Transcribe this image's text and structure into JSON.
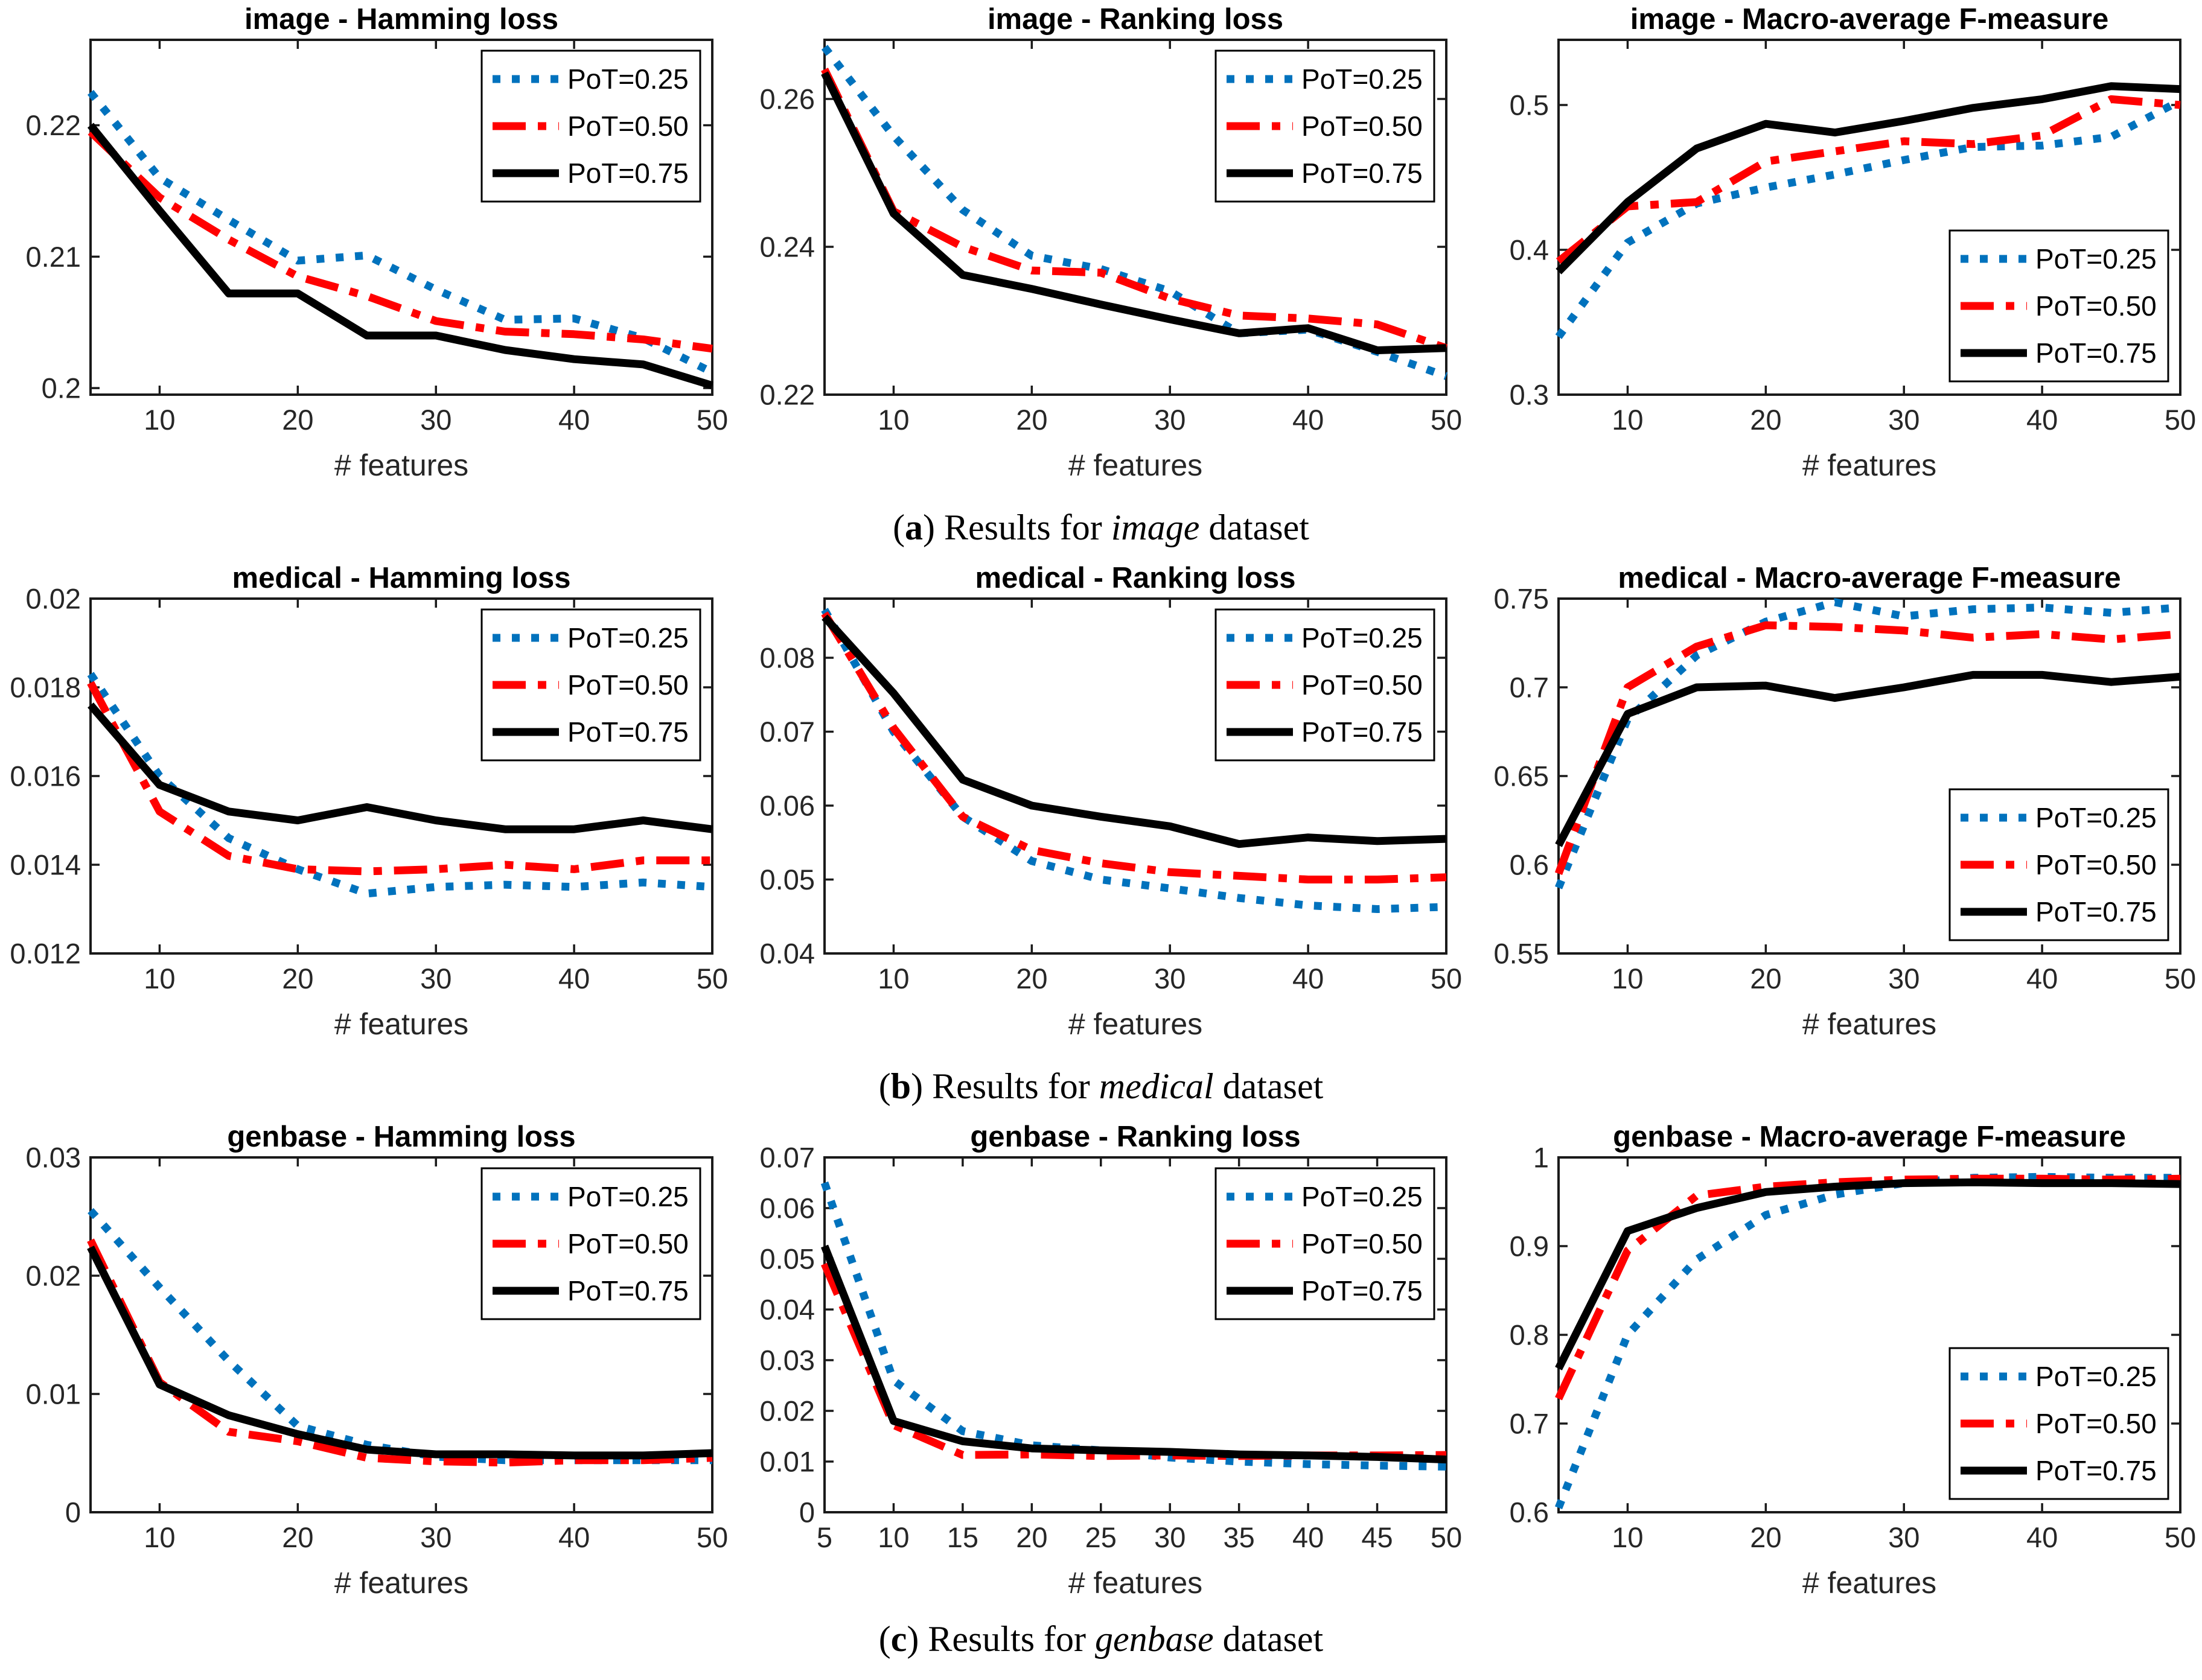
{
  "page": {
    "background": "#ffffff"
  },
  "colors": {
    "blue": "#0072BD",
    "red": "#FF0000",
    "black": "#000000",
    "axis": "#1a1a1a",
    "tick_label": "#262626"
  },
  "series_labels": [
    "PoT=0.25",
    "PoT=0.50",
    "PoT=0.75"
  ],
  "captions": [
    {
      "before": "(",
      "letter": "a",
      "after": ") ",
      "text": "Results for ",
      "dataset": "image",
      "suffix": " dataset"
    },
    {
      "before": "(",
      "letter": "b",
      "after": ") ",
      "text": "Results for ",
      "dataset": "medical",
      "suffix": " dataset"
    },
    {
      "before": "(",
      "letter": "c",
      "after": ") ",
      "text": "Results for ",
      "dataset": "genbase",
      "suffix": " dataset"
    }
  ],
  "chart_data": [
    {
      "type": "line",
      "title": "image - Hamming loss",
      "xlabel": "# features",
      "x": [
        5,
        10,
        15,
        20,
        25,
        30,
        35,
        40,
        45,
        50
      ],
      "xlim": [
        5,
        50
      ],
      "xticks": [
        10,
        20,
        30,
        40,
        50
      ],
      "ylim": [
        0.1995,
        0.2265
      ],
      "ytick_values": [
        0.2,
        0.21,
        0.22
      ],
      "ytick_labels": [
        "0.2",
        "0.21",
        "0.22"
      ],
      "grid": false,
      "legend_pos": "ne",
      "series": [
        {
          "name": "PoT=0.25",
          "color": "blue",
          "style": "dotted",
          "values": [
            0.2225,
            0.216,
            0.2128,
            0.2097,
            0.2101,
            0.2075,
            0.2052,
            0.2053,
            0.2038,
            0.2012
          ]
        },
        {
          "name": "PoT=0.50",
          "color": "red",
          "style": "dashdot",
          "values": [
            0.2195,
            0.2145,
            0.2113,
            0.2085,
            0.207,
            0.2051,
            0.2043,
            0.2041,
            0.2037,
            0.203
          ]
        },
        {
          "name": "PoT=0.75",
          "color": "black",
          "style": "solid",
          "values": [
            0.22,
            0.2135,
            0.2072,
            0.2072,
            0.204,
            0.204,
            0.2029,
            0.2022,
            0.2018,
            0.2002
          ]
        }
      ]
    },
    {
      "type": "line",
      "title": "image - Ranking loss",
      "xlabel": "# features",
      "x": [
        5,
        10,
        15,
        20,
        25,
        30,
        35,
        40,
        45,
        50
      ],
      "xlim": [
        5,
        50
      ],
      "xticks": [
        10,
        20,
        30,
        40,
        50
      ],
      "ylim": [
        0.22,
        0.268
      ],
      "ytick_values": [
        0.22,
        0.24,
        0.26
      ],
      "ytick_labels": [
        "0.22",
        "0.24",
        "0.26"
      ],
      "grid": false,
      "legend_pos": "ne",
      "series": [
        {
          "name": "PoT=0.25",
          "color": "blue",
          "style": "dotted",
          "values": [
            0.267,
            0.255,
            0.245,
            0.2388,
            0.237,
            0.234,
            0.2283,
            0.2288,
            0.2258,
            0.2225
          ]
        },
        {
          "name": "PoT=0.50",
          "color": "red",
          "style": "dashdot",
          "values": [
            0.264,
            0.2448,
            0.24,
            0.2368,
            0.2365,
            0.233,
            0.2307,
            0.2303,
            0.2295,
            0.2263
          ]
        },
        {
          "name": "PoT=0.75",
          "color": "black",
          "style": "solid",
          "values": [
            0.2635,
            0.2445,
            0.2362,
            0.2343,
            0.2322,
            0.2302,
            0.2283,
            0.229,
            0.226,
            0.2263
          ]
        }
      ]
    },
    {
      "type": "line",
      "title": "image - Macro-average F-measure",
      "xlabel": "# features",
      "x": [
        5,
        10,
        15,
        20,
        25,
        30,
        35,
        40,
        45,
        50
      ],
      "xlim": [
        5,
        50
      ],
      "xticks": [
        10,
        20,
        30,
        40,
        50
      ],
      "ylim": [
        0.3,
        0.545
      ],
      "ytick_values": [
        0.3,
        0.4,
        0.5
      ],
      "ytick_labels": [
        "0.3",
        "0.4",
        "0.5"
      ],
      "grid": false,
      "legend_pos": "se",
      "series": [
        {
          "name": "PoT=0.25",
          "color": "blue",
          "style": "dotted",
          "values": [
            0.34,
            0.405,
            0.432,
            0.443,
            0.452,
            0.462,
            0.471,
            0.472,
            0.478,
            0.503
          ]
        },
        {
          "name": "PoT=0.50",
          "color": "red",
          "style": "dashdot",
          "values": [
            0.392,
            0.43,
            0.433,
            0.461,
            0.468,
            0.475,
            0.473,
            0.479,
            0.504,
            0.5
          ]
        },
        {
          "name": "PoT=0.75",
          "color": "black",
          "style": "solid",
          "values": [
            0.385,
            0.433,
            0.47,
            0.487,
            0.481,
            0.489,
            0.498,
            0.504,
            0.513,
            0.511
          ]
        }
      ]
    },
    {
      "type": "line",
      "title": "medical - Hamming loss",
      "xlabel": "# features",
      "x": [
        5,
        10,
        15,
        20,
        25,
        30,
        35,
        40,
        45,
        50
      ],
      "xlim": [
        5,
        50
      ],
      "xticks": [
        10,
        20,
        30,
        40,
        50
      ],
      "ylim": [
        0.012,
        0.02
      ],
      "ytick_values": [
        0.012,
        0.014,
        0.016,
        0.018,
        0.02
      ],
      "ytick_labels": [
        "0.012",
        "0.014",
        "0.016",
        "0.018",
        "0.02"
      ],
      "grid": false,
      "legend_pos": "ne",
      "series": [
        {
          "name": "PoT=0.25",
          "color": "blue",
          "style": "dotted",
          "values": [
            0.0183,
            0.016,
            0.0146,
            0.0139,
            0.01335,
            0.0135,
            0.01355,
            0.0135,
            0.0136,
            0.0135
          ]
        },
        {
          "name": "PoT=0.50",
          "color": "red",
          "style": "dashdot",
          "values": [
            0.0181,
            0.0152,
            0.0142,
            0.0139,
            0.01385,
            0.0139,
            0.014,
            0.0139,
            0.0141,
            0.0141
          ]
        },
        {
          "name": "PoT=0.75",
          "color": "black",
          "style": "solid",
          "values": [
            0.0176,
            0.0158,
            0.0152,
            0.015,
            0.0153,
            0.015,
            0.0148,
            0.0148,
            0.015,
            0.0148
          ]
        }
      ]
    },
    {
      "type": "line",
      "title": "medical - Ranking loss",
      "xlabel": "# features",
      "x": [
        5,
        10,
        15,
        20,
        25,
        30,
        35,
        40,
        45,
        50
      ],
      "xlim": [
        5,
        50
      ],
      "xticks": [
        10,
        20,
        30,
        40,
        50
      ],
      "ylim": [
        0.04,
        0.088
      ],
      "ytick_values": [
        0.04,
        0.05,
        0.06,
        0.07,
        0.08
      ],
      "ytick_labels": [
        "0.04",
        "0.05",
        "0.06",
        "0.07",
        "0.08"
      ],
      "grid": false,
      "legend_pos": "ne",
      "series": [
        {
          "name": "PoT=0.25",
          "color": "blue",
          "style": "dotted",
          "values": [
            0.0865,
            0.07,
            0.0585,
            0.0525,
            0.05,
            0.0488,
            0.0475,
            0.0465,
            0.046,
            0.0463
          ]
        },
        {
          "name": "PoT=0.50",
          "color": "red",
          "style": "dashdot",
          "values": [
            0.086,
            0.0705,
            0.0585,
            0.054,
            0.0522,
            0.051,
            0.0505,
            0.05,
            0.05,
            0.0503
          ]
        },
        {
          "name": "PoT=0.75",
          "color": "black",
          "style": "solid",
          "values": [
            0.0855,
            0.0752,
            0.0635,
            0.06,
            0.0585,
            0.0572,
            0.0548,
            0.0557,
            0.0552,
            0.0555
          ]
        }
      ]
    },
    {
      "type": "line",
      "title": "medical - Macro-average F-measure",
      "xlabel": "# features",
      "x": [
        5,
        10,
        15,
        20,
        25,
        30,
        35,
        40,
        45,
        50
      ],
      "xlim": [
        5,
        50
      ],
      "xticks": [
        10,
        20,
        30,
        40,
        50
      ],
      "ylim": [
        0.55,
        0.75
      ],
      "ytick_values": [
        0.55,
        0.6,
        0.65,
        0.7,
        0.75
      ],
      "ytick_labels": [
        "0.55",
        "0.6",
        "0.65",
        "0.7",
        "0.75"
      ],
      "grid": false,
      "legend_pos": "se",
      "series": [
        {
          "name": "PoT=0.25",
          "color": "blue",
          "style": "dotted",
          "values": [
            0.587,
            0.682,
            0.718,
            0.737,
            0.748,
            0.74,
            0.744,
            0.745,
            0.742,
            0.745
          ]
        },
        {
          "name": "PoT=0.50",
          "color": "red",
          "style": "dashdot",
          "values": [
            0.595,
            0.7,
            0.723,
            0.735,
            0.734,
            0.732,
            0.728,
            0.73,
            0.727,
            0.73
          ]
        },
        {
          "name": "PoT=0.75",
          "color": "black",
          "style": "solid",
          "values": [
            0.611,
            0.685,
            0.7,
            0.701,
            0.694,
            0.7,
            0.707,
            0.707,
            0.703,
            0.706
          ]
        }
      ]
    },
    {
      "type": "line",
      "title": "genbase - Hamming loss",
      "xlabel": "# features",
      "x": [
        5,
        10,
        15,
        20,
        25,
        30,
        35,
        40,
        45,
        50
      ],
      "xlim": [
        5,
        50
      ],
      "xticks": [
        10,
        20,
        30,
        40,
        50
      ],
      "ylim": [
        0,
        0.03
      ],
      "ytick_values": [
        0,
        0.01,
        0.02,
        0.03
      ],
      "ytick_labels": [
        "0",
        "0.01",
        "0.02",
        "0.03"
      ],
      "grid": false,
      "legend_pos": "ne",
      "series": [
        {
          "name": "PoT=0.25",
          "color": "blue",
          "style": "dotted",
          "values": [
            0.0255,
            0.019,
            0.0128,
            0.0073,
            0.0057,
            0.0047,
            0.0044,
            0.0044,
            0.0044,
            0.0044
          ]
        },
        {
          "name": "PoT=0.50",
          "color": "red",
          "style": "dashdot",
          "values": [
            0.023,
            0.011,
            0.0068,
            0.006,
            0.0046,
            0.0043,
            0.0042,
            0.0044,
            0.0044,
            0.0046
          ]
        },
        {
          "name": "PoT=0.75",
          "color": "black",
          "style": "solid",
          "values": [
            0.0224,
            0.0108,
            0.0082,
            0.0066,
            0.0053,
            0.0049,
            0.0049,
            0.0048,
            0.0048,
            0.005
          ]
        }
      ]
    },
    {
      "type": "line",
      "title": "genbase - Ranking loss",
      "xlabel": "# features",
      "x": [
        5,
        10,
        15,
        20,
        25,
        30,
        35,
        40,
        45,
        50
      ],
      "xlim": [
        5,
        50
      ],
      "xticks": [
        5,
        10,
        15,
        20,
        25,
        30,
        35,
        40,
        45,
        50
      ],
      "ylim": [
        0,
        0.07
      ],
      "ytick_values": [
        0,
        0.01,
        0.02,
        0.03,
        0.04,
        0.05,
        0.06,
        0.07
      ],
      "ytick_labels": [
        "0",
        "0.01",
        "0.02",
        "0.03",
        "0.04",
        "0.05",
        "0.06",
        "0.07"
      ],
      "grid": false,
      "legend_pos": "ne",
      "series": [
        {
          "name": "PoT=0.25",
          "color": "blue",
          "style": "dotted",
          "values": [
            0.065,
            0.026,
            0.016,
            0.0132,
            0.0122,
            0.0108,
            0.01,
            0.0095,
            0.0092,
            0.009
          ]
        },
        {
          "name": "PoT=0.50",
          "color": "red",
          "style": "dashdot",
          "values": [
            0.049,
            0.0172,
            0.0113,
            0.0114,
            0.0111,
            0.0112,
            0.0111,
            0.0112,
            0.0112,
            0.0113
          ]
        },
        {
          "name": "PoT=0.75",
          "color": "black",
          "style": "solid",
          "values": [
            0.0525,
            0.018,
            0.014,
            0.0126,
            0.0122,
            0.0119,
            0.0114,
            0.0112,
            0.0109,
            0.0104
          ]
        }
      ]
    },
    {
      "type": "line",
      "title": "genbase - Macro-average F-measure",
      "xlabel": "# features",
      "x": [
        5,
        10,
        15,
        20,
        25,
        30,
        35,
        40,
        45,
        50
      ],
      "xlim": [
        5,
        50
      ],
      "xticks": [
        10,
        20,
        30,
        40,
        50
      ],
      "ylim": [
        0.6,
        1.0
      ],
      "ytick_values": [
        0.6,
        0.7,
        0.8,
        0.9,
        1.0
      ],
      "ytick_labels": [
        "0.6",
        "0.7",
        "0.8",
        "0.9",
        "1"
      ],
      "grid": false,
      "legend_pos": "se",
      "series": [
        {
          "name": "PoT=0.25",
          "color": "blue",
          "style": "dotted",
          "values": [
            0.605,
            0.8,
            0.885,
            0.935,
            0.958,
            0.971,
            0.977,
            0.978,
            0.977,
            0.977
          ]
        },
        {
          "name": "PoT=0.50",
          "color": "red",
          "style": "dashdot",
          "values": [
            0.728,
            0.895,
            0.957,
            0.967,
            0.972,
            0.975,
            0.976,
            0.976,
            0.975,
            0.976
          ]
        },
        {
          "name": "PoT=0.75",
          "color": "black",
          "style": "solid",
          "values": [
            0.762,
            0.917,
            0.943,
            0.961,
            0.967,
            0.971,
            0.972,
            0.971,
            0.971,
            0.97
          ]
        }
      ]
    }
  ]
}
